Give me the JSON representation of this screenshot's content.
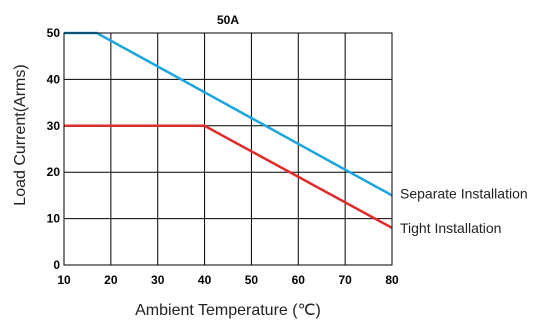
{
  "chart_data": {
    "type": "line",
    "title": "50A",
    "xlabel": "Ambient Temperature (℃)",
    "ylabel": "Load Current(Arms)",
    "xlim": [
      10,
      80
    ],
    "ylim": [
      0,
      50
    ],
    "xticks": [
      10,
      20,
      30,
      40,
      50,
      60,
      70,
      80
    ],
    "yticks": [
      0,
      10,
      20,
      30,
      40,
      50
    ],
    "grid": true,
    "series": [
      {
        "name": "Separate Installation",
        "color": "#1aa6e0",
        "x": [
          10,
          17,
          80
        ],
        "y": [
          50,
          50,
          15
        ]
      },
      {
        "name": "Tight Installation",
        "color": "#e02b2b",
        "x": [
          10,
          40,
          80
        ],
        "y": [
          30,
          30,
          8
        ]
      }
    ]
  }
}
